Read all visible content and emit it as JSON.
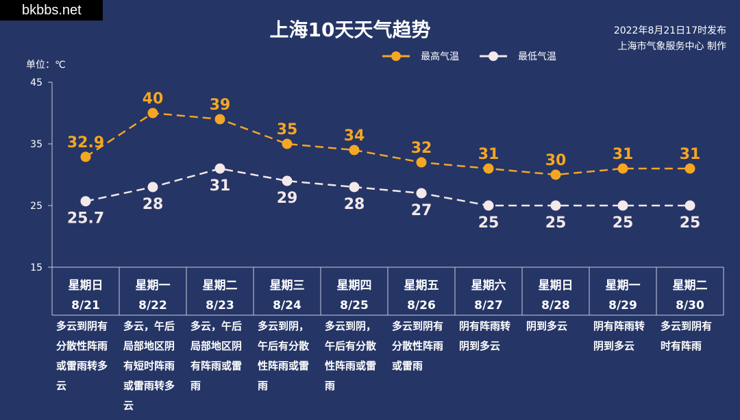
{
  "watermark": "bkbbs.net",
  "title": "上海10天天气趋势",
  "publish": {
    "line1": "2022年8月21日17时发布",
    "line2": "上海市气象服务中心 制作"
  },
  "unit_label": "单位：℃",
  "colors": {
    "background": "#253565",
    "high": "#f5a623",
    "low": "#f3e8ea"
  },
  "chart_data": {
    "type": "line",
    "title": "上海10天天气趋势",
    "ylabel": "单位：℃",
    "ylim": [
      15,
      45
    ],
    "yticks": [
      15,
      25,
      35,
      45
    ],
    "legend_position": "top-right",
    "x": [
      "星期日",
      "星期一",
      "星期二",
      "星期三",
      "星期四",
      "星期五",
      "星期六",
      "星期日",
      "星期一",
      "星期二"
    ],
    "dates": [
      "8/21",
      "8/22",
      "8/23",
      "8/24",
      "8/25",
      "8/26",
      "8/27",
      "8/28",
      "8/29",
      "8/30"
    ],
    "series": [
      {
        "name": "最高气温",
        "values": [
          32.9,
          40,
          39,
          35,
          34,
          32,
          31,
          30,
          31,
          31
        ],
        "labels": [
          "32.9",
          "40",
          "39",
          "35",
          "34",
          "32",
          "31",
          "30",
          "31",
          "31"
        ]
      },
      {
        "name": "最低气温",
        "values": [
          25.7,
          28,
          31,
          29,
          28,
          27,
          25,
          25,
          25,
          25
        ],
        "labels": [
          "25.7",
          "28",
          "31",
          "29",
          "28",
          "27",
          "25",
          "25",
          "25",
          "25"
        ]
      }
    ],
    "descriptions": [
      "多云到阴有分散性阵雨或雷雨转多云",
      "多云，午后局部地区阴有短时阵雨或雷雨转多云",
      "多云，午后局部地区阴有阵雨或雷雨",
      "多云到阴，午后有分散性阵雨或雷雨",
      "多云到阴，午后有分散性阵雨或雷雨",
      "多云到阴有分散性阵雨或雷雨",
      "阴有阵雨转阴到多云",
      "阴到多云",
      "阴有阵雨转阴到多云",
      "多云到阴有时有阵雨"
    ]
  }
}
